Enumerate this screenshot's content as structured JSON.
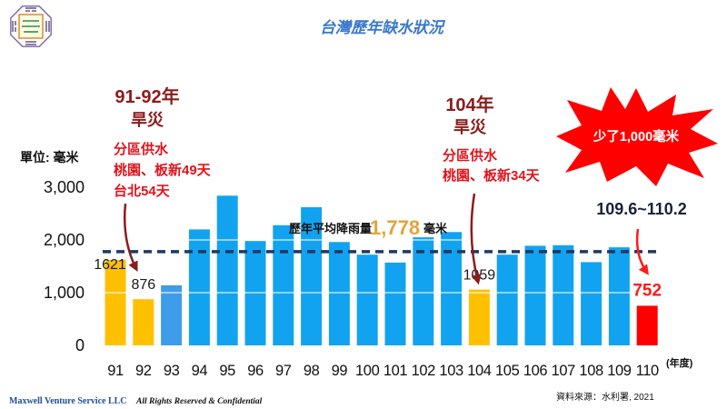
{
  "slide": {
    "title": "台灣歷年缺水狀況",
    "source": "資料來源：水利署, 2021"
  },
  "footer": {
    "company": "Maxwell Venture Service LLC",
    "rights": "All Rights Reserved & Confidential"
  },
  "annotations": {
    "drought_91_92": {
      "title": "91-92年",
      "subtitle": "旱災",
      "line1": "分區供水",
      "line2": "桃園、板新49天",
      "line3": "台北54天"
    },
    "drought_104": {
      "title": "104年",
      "subtitle": "旱災",
      "line1": "分區供水",
      "line2": "桃園、板新34天"
    },
    "shortfall_burst": "少了1,000毫米",
    "recent_period": "109.6~110.2",
    "average": {
      "label": "歷年平均降雨量",
      "value": "1,778",
      "unit": "毫米"
    }
  },
  "icons": {
    "logo": "bagua-logo-icon",
    "arrow": "curved-arrow-icon",
    "burst": "starburst-icon"
  },
  "colors": {
    "title": "#3B78C9",
    "dark_red": "#8B1C1C",
    "bright_red": "#E0141C",
    "gold": "#E3A33B",
    "navy": "#1F3864",
    "footer_blue": "#1F4E9A",
    "burst_fill": "#FF0000"
  },
  "chart_data": {
    "type": "bar",
    "ylabel": "單位: 毫米",
    "xlabel": "(年度)",
    "categories": [
      "91",
      "92",
      "93",
      "94",
      "95",
      "96",
      "97",
      "98",
      "99",
      "100",
      "101",
      "102",
      "103",
      "104",
      "105",
      "106",
      "107",
      "108",
      "109",
      "110"
    ],
    "values": [
      1621,
      876,
      1140,
      2200,
      2840,
      1980,
      2280,
      2620,
      1960,
      1720,
      1570,
      2050,
      2150,
      1059,
      1720,
      1890,
      1900,
      1580,
      1860,
      752
    ],
    "ylim": [
      0,
      3000
    ],
    "yticks": [
      {
        "value": 0,
        "label": "0"
      },
      {
        "value": 1000,
        "label": "1,000"
      },
      {
        "value": 2000,
        "label": "2,000"
      },
      {
        "value": 3000,
        "label": "3,000"
      }
    ],
    "grid": true,
    "average_line": {
      "value": 1778,
      "color": "#1F3864"
    },
    "bar_colors": [
      "#FFC000",
      "#FFC000",
      "#3E9CEB",
      "#12A3F0",
      "#12A3F0",
      "#12A3F0",
      "#12A3F0",
      "#12A3F0",
      "#12A3F0",
      "#12A3F0",
      "#12A3F0",
      "#12A3F0",
      "#12A3F0",
      "#FFC000",
      "#12A3F0",
      "#12A3F0",
      "#12A3F0",
      "#12A3F0",
      "#12A3F0",
      "#FF0000"
    ],
    "data_labels": [
      {
        "category": "91",
        "text": "1621",
        "color": "#1a1a1a",
        "emphasis": false
      },
      {
        "category": "92",
        "text": "876",
        "color": "#1a1a1a",
        "emphasis": false
      },
      {
        "category": "104",
        "text": "1059",
        "color": "#1a1a1a",
        "emphasis": false
      },
      {
        "category": "110",
        "text": "752",
        "color": "#FF1A1A",
        "emphasis": true
      }
    ]
  }
}
